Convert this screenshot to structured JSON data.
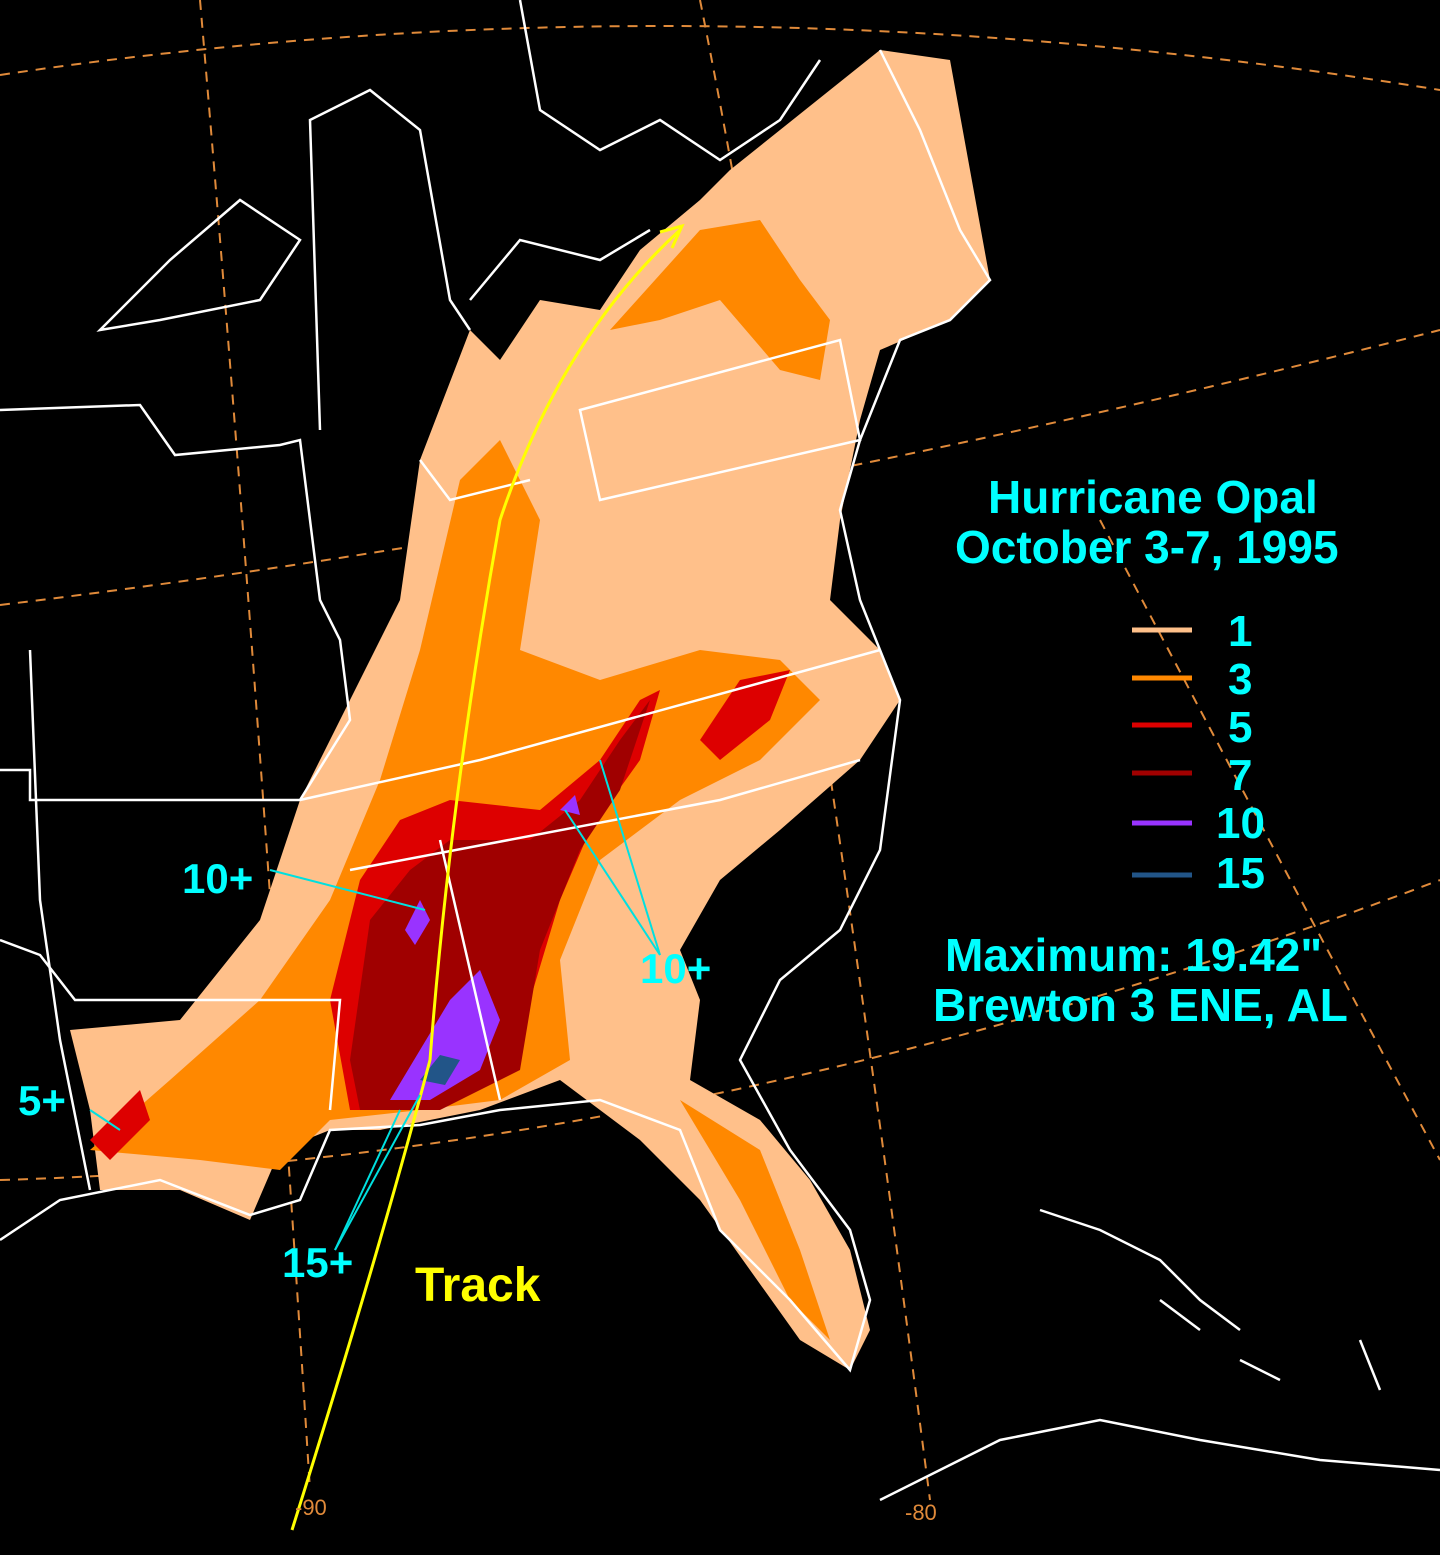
{
  "title": "Hurricane Opal",
  "dates": "October 3-7, 1995",
  "legend": [
    {
      "label": "1",
      "color": "#ffc08a"
    },
    {
      "label": "3",
      "color": "#ff8800"
    },
    {
      "label": "5",
      "color": "#dd0000"
    },
    {
      "label": "7",
      "color": "#a00000"
    },
    {
      "label": "10",
      "color": "#9933ff"
    },
    {
      "label": "15",
      "color": "#225588"
    }
  ],
  "maximum": "Maximum:  19.42\"",
  "station": "Brewton 3 ENE, AL",
  "annotations": {
    "ms": "10+",
    "ga": "10+",
    "la": "5+",
    "al": "15+"
  },
  "track_label": "Track",
  "longitudes": [
    "-90",
    "-80"
  ],
  "colors": {
    "track": "#ffff00",
    "text": "#00ffff",
    "borders": "#ffffff",
    "graticule": "#e08a3a"
  }
}
